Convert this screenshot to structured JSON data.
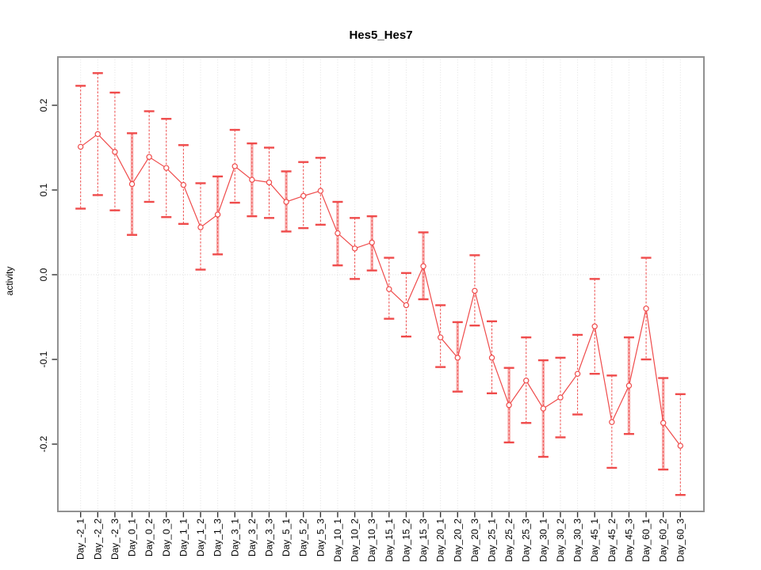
{
  "figure": {
    "title": "Hes5_Hes7",
    "ylabel": "activity"
  },
  "chart_data": {
    "type": "line",
    "title": "Hes5_Hes7",
    "xlabel": "",
    "ylabel": "activity",
    "legend": "none",
    "grid": {
      "vertical_dotted": true,
      "horizontal_zero_dotted": true
    },
    "categories": [
      "Day_-2_1",
      "Day_-2_2",
      "Day_-2_3",
      "Day_0_1",
      "Day_0_2",
      "Day_0_3",
      "Day_1_1",
      "Day_1_2",
      "Day_1_3",
      "Day_3_1",
      "Day_3_2",
      "Day_3_3",
      "Day_5_1",
      "Day_5_2",
      "Day_5_3",
      "Day_10_1",
      "Day_10_2",
      "Day_10_3",
      "Day_15_1",
      "Day_15_2",
      "Day_15_3",
      "Day_20_1",
      "Day_20_2",
      "Day_20_3",
      "Day_25_1",
      "Day_25_2",
      "Day_25_3",
      "Day_30_1",
      "Day_30_2",
      "Day_30_3",
      "Day_45_1",
      "Day_45_2",
      "Day_45_3",
      "Day_60_1",
      "Day_60_2",
      "Day_60_3"
    ],
    "series": [
      {
        "name": "activity",
        "marker": "open-circle",
        "values": [
          0.151,
          0.166,
          0.145,
          0.107,
          0.139,
          0.126,
          0.106,
          0.056,
          0.071,
          0.128,
          0.112,
          0.109,
          0.086,
          0.093,
          0.099,
          0.049,
          0.031,
          0.038,
          -0.017,
          -0.036,
          0.01,
          -0.074,
          -0.098,
          -0.019,
          -0.098,
          -0.154,
          -0.125,
          -0.158,
          -0.145,
          -0.117,
          -0.061,
          -0.174,
          -0.131,
          -0.04,
          -0.175,
          -0.202
        ],
        "error_low": [
          0.078,
          0.094,
          0.076,
          0.047,
          0.086,
          0.068,
          0.06,
          0.006,
          0.024,
          0.085,
          0.069,
          0.067,
          0.051,
          0.055,
          0.059,
          0.011,
          -0.005,
          0.005,
          -0.052,
          -0.073,
          -0.029,
          -0.109,
          -0.138,
          -0.06,
          -0.14,
          -0.198,
          -0.175,
          -0.215,
          -0.192,
          -0.165,
          -0.117,
          -0.228,
          -0.188,
          -0.1,
          -0.23,
          -0.26
        ],
        "error_high": [
          0.223,
          0.238,
          0.215,
          0.167,
          0.193,
          0.184,
          0.153,
          0.108,
          0.116,
          0.171,
          0.155,
          0.15,
          0.122,
          0.133,
          0.138,
          0.086,
          0.067,
          0.069,
          0.02,
          0.002,
          0.05,
          -0.036,
          -0.056,
          0.023,
          -0.055,
          -0.11,
          -0.074,
          -0.101,
          -0.098,
          -0.071,
          -0.005,
          -0.119,
          -0.074,
          0.02,
          -0.122,
          -0.141
        ],
        "thick_bar": [
          false,
          false,
          false,
          true,
          false,
          false,
          false,
          false,
          true,
          false,
          true,
          false,
          true,
          false,
          false,
          true,
          false,
          true,
          false,
          false,
          true,
          false,
          true,
          false,
          false,
          true,
          false,
          true,
          false,
          false,
          false,
          false,
          true,
          false,
          true,
          false
        ]
      }
    ],
    "ytick_values": [
      0.2,
      0.1,
      0.0,
      -0.1,
      -0.2
    ],
    "ytick_labels": [
      "0.2",
      "0.1",
      "0.0",
      "-0.1",
      "-0.2"
    ],
    "ylim": [
      -0.279,
      0.257
    ],
    "colors": {
      "series": "#ef4b4b",
      "thick_bar": "#f8b0af",
      "grid": "#e2e2e2",
      "zero_line": "#dcdcdc",
      "box": "#919191",
      "tick": "#333333",
      "text": "#000000"
    }
  }
}
